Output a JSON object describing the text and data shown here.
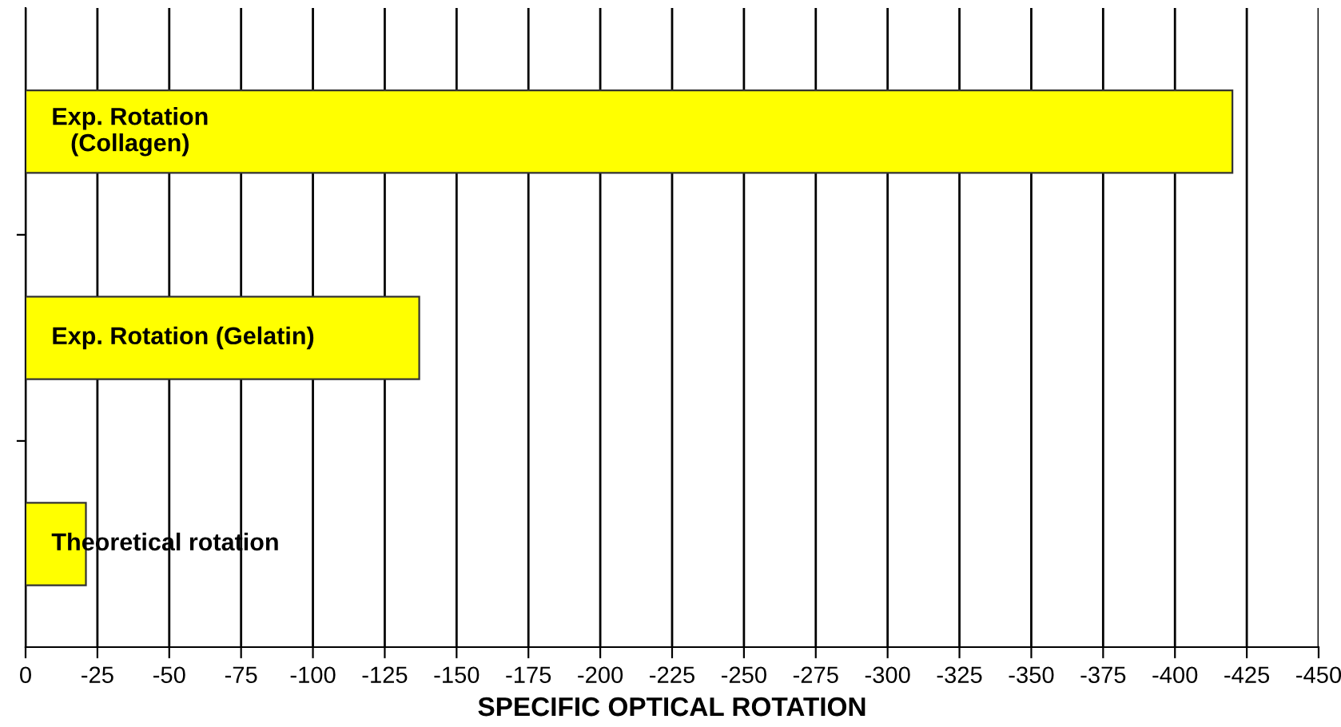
{
  "chart_data": {
    "type": "bar",
    "orientation": "horizontal",
    "xlabel": "SPECIFIC OPTICAL ROTATION",
    "categories": [
      "Exp. Rotation\n(Collagen)",
      "Exp. Rotation (Gelatin)",
      "Theoretical rotation"
    ],
    "values": [
      -420,
      -137,
      -21
    ],
    "color": "#ffff00",
    "xlim": [
      0,
      -450
    ],
    "xticks": [
      0,
      -25,
      -50,
      -75,
      -100,
      -125,
      -150,
      -175,
      -200,
      -225,
      -250,
      -275,
      -300,
      -325,
      -350,
      -375,
      -400,
      -425,
      -450
    ],
    "grid": "x"
  }
}
